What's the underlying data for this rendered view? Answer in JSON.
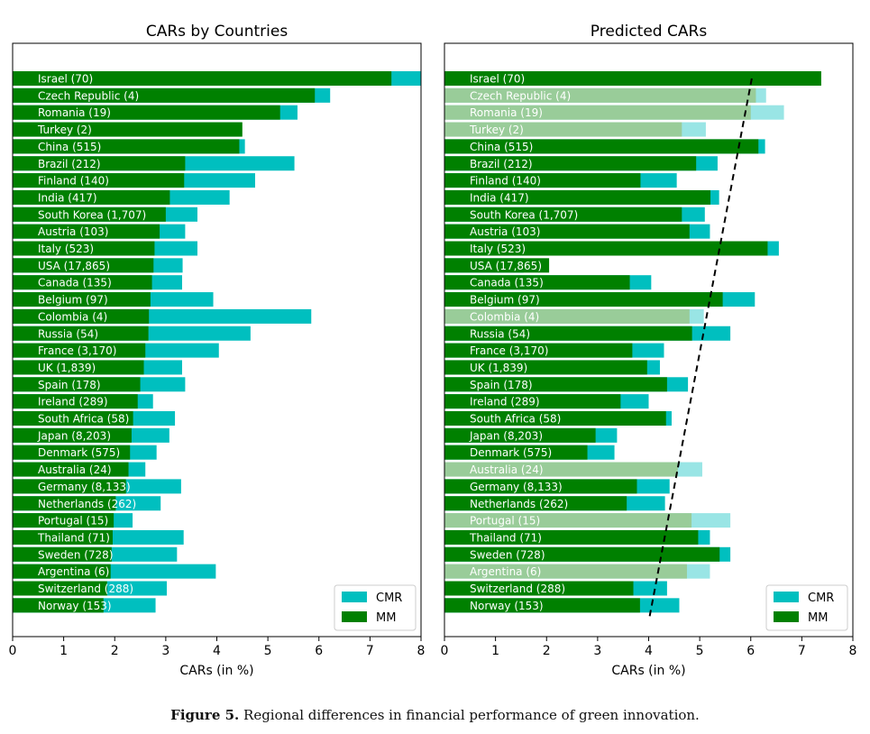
{
  "caption": {
    "label": "Figure 5.",
    "text": "Regional differences in financial performance of green innovation."
  },
  "colors": {
    "mm": "#008000",
    "cmr": "#00bfbf",
    "mm_faded": "#99cc99",
    "cmr_faded": "#99e5e5",
    "label_text": "#ffffff",
    "trend_line": "#000000"
  },
  "chart_data": [
    {
      "type": "bar",
      "orientation": "horizontal",
      "stacked": "overlay",
      "title": "CARs by Countries",
      "xlabel": "CARs (in %)",
      "xlim": [
        0,
        8
      ],
      "xticks": [
        "0",
        "1",
        "2",
        "3",
        "4",
        "5",
        "6",
        "7",
        "8"
      ],
      "legend": {
        "position": "bottom-right",
        "entries": [
          "CMR",
          "MM"
        ]
      },
      "categories": [
        "Israel (70)",
        "Czech Republic (4)",
        "Romania (19)",
        "Turkey (2)",
        "China (515)",
        "Brazil (212)",
        "Finland (140)",
        "India (417)",
        "South Korea (1,707)",
        "Austria (103)",
        "Italy (523)",
        "USA (17,865)",
        "Canada (135)",
        "Belgium (97)",
        "Colombia (4)",
        "Russia (54)",
        "France (3,170)",
        "UK (1,839)",
        "Spain (178)",
        "Ireland (289)",
        "South Africa (58)",
        "Japan (8,203)",
        "Denmark (575)",
        "Australia (24)",
        "Germany (8,133)",
        "Netherlands (262)",
        "Portugal (15)",
        "Thailand (71)",
        "Sweden (728)",
        "Argentina (6)",
        "Switzerland (288)",
        "Norway (153)"
      ],
      "series": [
        {
          "name": "CMR",
          "values": [
            8.0,
            6.22,
            5.58,
            4.48,
            4.55,
            5.52,
            4.75,
            4.25,
            3.62,
            3.38,
            3.62,
            3.33,
            3.32,
            3.93,
            5.85,
            4.66,
            4.04,
            3.32,
            3.38,
            2.75,
            3.18,
            3.07,
            2.82,
            2.6,
            3.3,
            2.9,
            2.35,
            3.35,
            3.22,
            3.98,
            3.02,
            2.8
          ]
        },
        {
          "name": "MM",
          "values": [
            7.42,
            5.92,
            5.24,
            4.5,
            4.44,
            3.38,
            3.36,
            3.08,
            3.0,
            2.88,
            2.78,
            2.76,
            2.73,
            2.7,
            2.67,
            2.66,
            2.6,
            2.57,
            2.5,
            2.45,
            2.36,
            2.33,
            2.3,
            2.27,
            2.22,
            2.02,
            1.98,
            1.96,
            1.94,
            1.92,
            1.85,
            1.78
          ]
        }
      ]
    },
    {
      "type": "bar",
      "orientation": "horizontal",
      "stacked": "overlay",
      "title": "Predicted CARs",
      "xlabel": "CARs (in %)",
      "xlim": [
        0,
        8
      ],
      "xticks": [
        "0",
        "1",
        "2",
        "3",
        "4",
        "5",
        "6",
        "7",
        "8"
      ],
      "legend": {
        "position": "bottom-right",
        "entries": [
          "CMR",
          "MM"
        ]
      },
      "categories": [
        "Israel (70)",
        "Czech Republic (4)",
        "Romania (19)",
        "Turkey (2)",
        "China (515)",
        "Brazil (212)",
        "Finland (140)",
        "India (417)",
        "South Korea (1,707)",
        "Austria (103)",
        "Italy (523)",
        "USA (17,865)",
        "Canada (135)",
        "Belgium (97)",
        "Colombia (4)",
        "Russia (54)",
        "France (3,170)",
        "UK (1,839)",
        "Spain (178)",
        "Ireland (289)",
        "South Africa (58)",
        "Japan (8,203)",
        "Denmark (575)",
        "Australia (24)",
        "Germany (8,133)",
        "Netherlands (262)",
        "Portugal (15)",
        "Thailand (71)",
        "Sweden (728)",
        "Argentina (6)",
        "Switzerland (288)",
        "Norway (153)"
      ],
      "faded_categories": [
        "Czech Republic (4)",
        "Romania (19)",
        "Turkey (2)",
        "Colombia (4)",
        "Australia (24)",
        "Portugal (15)",
        "Argentina (6)"
      ],
      "series": [
        {
          "name": "CMR",
          "values": [
            7.15,
            6.3,
            6.65,
            5.12,
            6.28,
            5.35,
            4.55,
            5.38,
            5.1,
            5.2,
            6.55,
            1.55,
            4.05,
            6.08,
            5.08,
            5.6,
            4.3,
            4.22,
            4.77,
            4.0,
            4.45,
            3.38,
            3.33,
            5.05,
            4.41,
            4.32,
            5.6,
            5.2,
            5.6,
            5.2,
            4.36,
            4.6
          ]
        },
        {
          "name": "MM",
          "values": [
            7.38,
            6.1,
            6.0,
            4.65,
            6.15,
            4.93,
            3.84,
            5.21,
            4.65,
            4.8,
            6.33,
            2.05,
            3.63,
            5.45,
            4.8,
            4.85,
            3.68,
            3.97,
            4.36,
            3.45,
            4.34,
            2.96,
            2.8,
            4.57,
            3.77,
            3.57,
            4.84,
            4.97,
            5.39,
            4.75,
            3.7,
            3.83
          ]
        }
      ],
      "trend_line": {
        "style": "dashed",
        "x": [
          4.02,
          6.02
        ]
      }
    }
  ]
}
